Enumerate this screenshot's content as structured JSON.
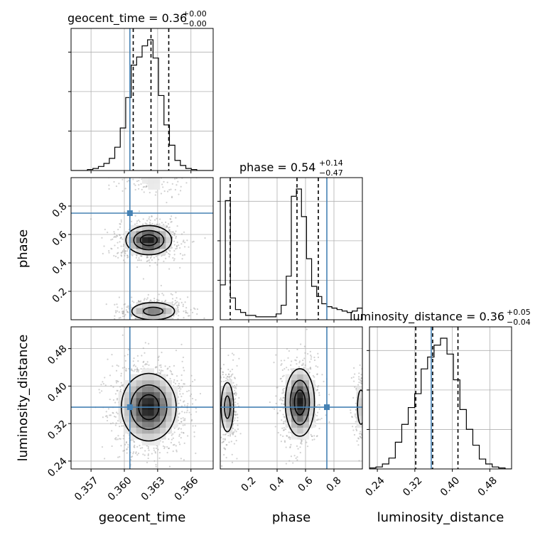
{
  "colors": {
    "truth": "#4682b4",
    "hist": "#000000",
    "grid": "#b0b0b0",
    "quantile": "#000000",
    "points": "#9a9a9a"
  },
  "chart_data": {
    "type": "corner",
    "parameters": [
      "geocent_time",
      "phase",
      "luminosity_distance"
    ],
    "axis_labels": {
      "geocent_time": "geocent_time",
      "phase": "phase",
      "luminosity_distance": "luminosity_distance"
    },
    "titles": [
      {
        "param": "geocent_time",
        "text": "geocent_time = 0.36",
        "plus": "+0.00",
        "minus": "−0.00"
      },
      {
        "param": "phase",
        "text": "phase = 0.54",
        "plus": "+0.14",
        "minus": "−0.47"
      },
      {
        "param": "luminosity_distance",
        "text": "luminosity_distance = 0.36",
        "plus": "+0.05",
        "minus": "−0.04"
      }
    ],
    "ranges": {
      "geocent_time": [
        0.3552,
        0.368
      ],
      "phase": [
        0.0,
        1.0
      ],
      "luminosity_distance": [
        0.2232,
        0.5264
      ]
    },
    "ticks": {
      "geocent_time": {
        "values": [
          0.357,
          0.36,
          0.363,
          0.366
        ],
        "labels": [
          "0.357",
          "0.360",
          "0.363",
          "0.366"
        ]
      },
      "phase": {
        "values": [
          0.2,
          0.4,
          0.6,
          0.8
        ],
        "labels": [
          "0.2",
          "0.4",
          "0.6",
          "0.8"
        ]
      },
      "luminosity_distance": {
        "values": [
          0.24,
          0.32,
          0.4,
          0.48
        ],
        "labels": [
          "0.24",
          "0.32",
          "0.40",
          "0.48"
        ]
      }
    },
    "truth": {
      "geocent_time": 0.3605,
      "phase": 0.75,
      "luminosity_distance": 0.355
    },
    "quantiles": {
      "geocent_time": [
        0.3608,
        0.3624,
        0.364
      ],
      "phase": [
        0.07,
        0.54,
        0.69
      ],
      "luminosity_distance": [
        0.322,
        0.358,
        0.412
      ]
    },
    "histograms": {
      "geocent_time": [
        0,
        0,
        0,
        1,
        2,
        4,
        7,
        12,
        23,
        42,
        72,
        104,
        112,
        123,
        129,
        111,
        74,
        45,
        25,
        10,
        5,
        2,
        1,
        0,
        0,
        0
      ],
      "phase": [
        0.24,
        0.82,
        0.15,
        0.07,
        0.05,
        0.03,
        0.03,
        0.02,
        0.02,
        0.02,
        0.02,
        0.04,
        0.1,
        0.3,
        0.85,
        0.9,
        0.71,
        0.42,
        0.23,
        0.16,
        0.11,
        0.09,
        0.08,
        0.07,
        0.06,
        0.05,
        0.06,
        0.08
      ],
      "luminosity_distance": [
        1,
        2,
        5,
        11,
        27,
        45,
        62,
        76,
        101,
        113,
        125,
        132,
        116,
        90,
        60,
        40,
        24,
        10,
        5,
        2,
        1,
        0
      ]
    },
    "densities": {
      "geocent_time__phase": [
        {
          "x": 0.3622,
          "y": 0.56,
          "sx": 0.001,
          "sy": 0.05,
          "w": 1.0
        },
        {
          "x": 0.3626,
          "y": 0.06,
          "sx": 0.0011,
          "sy": 0.035,
          "w": 0.55
        },
        {
          "x": 0.3626,
          "y": 0.96,
          "sx": 0.0012,
          "sy": 0.03,
          "w": 0.12
        }
      ],
      "geocent_time__luminosity_distance": [
        {
          "x": 0.3622,
          "y": 0.355,
          "sx": 0.0012,
          "sy": 0.035,
          "w": 1.0
        }
      ],
      "phase__luminosity_distance": [
        {
          "x": 0.56,
          "y": 0.365,
          "sx": 0.05,
          "sy": 0.035,
          "w": 1.0
        },
        {
          "x": 0.05,
          "y": 0.355,
          "sx": 0.025,
          "sy": 0.03,
          "w": 0.55
        },
        {
          "x": 0.99,
          "y": 0.355,
          "sx": 0.02,
          "sy": 0.03,
          "w": 0.25
        }
      ]
    }
  }
}
